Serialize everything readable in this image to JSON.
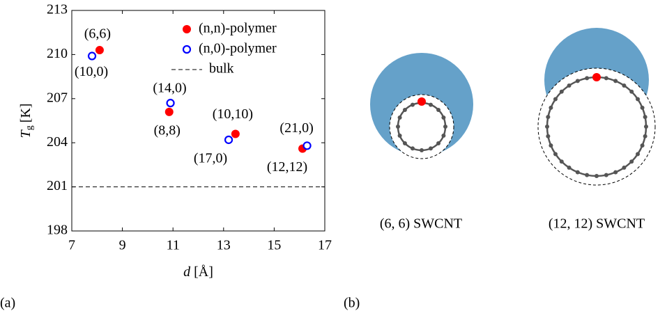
{
  "chart_data": {
    "type": "scatter",
    "xlabel": {
      "symbol": "d",
      "unit": "[Å]"
    },
    "ylabel": {
      "symbol": "T",
      "subscript": "g",
      "unit": "[K]"
    },
    "xlim": [
      7,
      17
    ],
    "xticks": [
      7,
      9,
      11,
      13,
      15,
      17
    ],
    "ylim": [
      198,
      213
    ],
    "yticks": [
      198,
      201,
      204,
      207,
      210,
      213
    ],
    "legend": "upper right",
    "series": [
      {
        "name": "(n,n)-polymer",
        "color": "#ff0000",
        "marker": "filled",
        "x": [
          8.1,
          10.85,
          13.47,
          16.12
        ],
        "values": [
          210.3,
          206.1,
          204.6,
          203.6
        ],
        "point_labels": [
          "(6,6)",
          "(8,8)",
          "(10,10)",
          "(12,12)"
        ]
      },
      {
        "name": "(n,0)-polymer",
        "color": "#0000ff",
        "marker": "open",
        "x": [
          7.8,
          10.9,
          13.2,
          16.3
        ],
        "values": [
          209.9,
          206.7,
          204.2,
          203.8
        ],
        "point_labels": [
          "(10,0)",
          "(14,0)",
          "(17,0)",
          "(21,0)"
        ]
      }
    ],
    "bulk": {
      "name": "bulk",
      "value": 201
    }
  },
  "panel_labels": [
    "(a)",
    "(b)"
  ],
  "diagrams": [
    {
      "caption": "(6, 6) SWCNT"
    },
    {
      "caption": "(12, 12) SWCNT"
    }
  ]
}
